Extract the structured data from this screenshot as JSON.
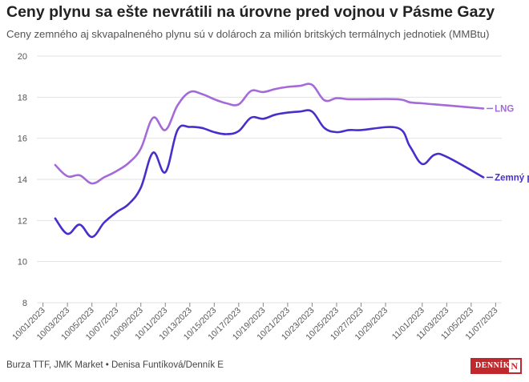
{
  "header": {
    "title": "Ceny plynu sa ešte nevrátili na úrovne pred vojnou v Pásme Gazy",
    "subtitle": "Ceny zemného aj skvapalneného plynu sú v dolároch za milión britských termálnych jednotiek (MMBtu)"
  },
  "footer": {
    "source": "Burza TTF, JMK Market • Denisa Funtíková/Denník E",
    "logo_text": "DENNÍK",
    "logo_mark": "N"
  },
  "colors": {
    "lng": "#a46ad8",
    "natural_gas": "#4a2ecb",
    "grid": "#e2e2e2",
    "axis_text": "#555555"
  },
  "chart_data": {
    "type": "line",
    "ylim": [
      8,
      20
    ],
    "yticks": [
      8,
      10,
      12,
      14,
      16,
      18,
      20
    ],
    "grid": true,
    "xlabel": "",
    "ylabel": "",
    "xticks": [
      "10/01/2023",
      "10/03/2023",
      "10/05/2023",
      "10/07/2023",
      "10/09/2023",
      "10/11/2023",
      "10/13/2023",
      "10/15/2023",
      "10/17/2023",
      "10/19/2023",
      "10/21/2023",
      "10/23/2023",
      "10/25/2023",
      "10/27/2023",
      "10/29/2023",
      "11/01/2023",
      "11/03/2023",
      "11/05/2023",
      "11/07/2023"
    ],
    "series": [
      {
        "name": "LNG",
        "color_key": "lng",
        "points": [
          [
            "10/02/2023",
            14.7
          ],
          [
            "10/03/2023",
            14.15
          ],
          [
            "10/04/2023",
            14.2
          ],
          [
            "10/05/2023",
            13.8
          ],
          [
            "10/06/2023",
            14.1
          ],
          [
            "10/07/2023",
            14.4
          ],
          [
            "10/08/2023",
            14.8
          ],
          [
            "10/09/2023",
            15.5
          ],
          [
            "10/10/2023",
            17.0
          ],
          [
            "10/11/2023",
            16.4
          ],
          [
            "10/12/2023",
            17.6
          ],
          [
            "10/13/2023",
            18.25
          ],
          [
            "10/14/2023",
            18.15
          ],
          [
            "10/15/2023",
            17.9
          ],
          [
            "10/16/2023",
            17.7
          ],
          [
            "10/17/2023",
            17.65
          ],
          [
            "10/18/2023",
            18.3
          ],
          [
            "10/19/2023",
            18.25
          ],
          [
            "10/20/2023",
            18.4
          ],
          [
            "10/21/2023",
            18.5
          ],
          [
            "10/22/2023",
            18.55
          ],
          [
            "10/23/2023",
            18.6
          ],
          [
            "10/24/2023",
            17.85
          ],
          [
            "10/25/2023",
            17.95
          ],
          [
            "10/26/2023",
            17.9
          ],
          [
            "10/27/2023",
            17.9
          ],
          [
            "10/30/2023",
            17.9
          ],
          [
            "10/31/2023",
            17.75
          ],
          [
            "11/01/2023",
            17.7
          ],
          [
            "11/02/2023",
            17.65
          ],
          [
            "11/03/2023",
            17.6
          ],
          [
            "11/06/2023",
            17.45
          ]
        ]
      },
      {
        "name": "Zemný plyn",
        "color_key": "natural_gas",
        "points": [
          [
            "10/02/2023",
            12.1
          ],
          [
            "10/03/2023",
            11.35
          ],
          [
            "10/04/2023",
            11.8
          ],
          [
            "10/05/2023",
            11.2
          ],
          [
            "10/06/2023",
            11.9
          ],
          [
            "10/07/2023",
            12.4
          ],
          [
            "10/08/2023",
            12.8
          ],
          [
            "10/09/2023",
            13.6
          ],
          [
            "10/10/2023",
            15.3
          ],
          [
            "10/11/2023",
            14.35
          ],
          [
            "10/12/2023",
            16.4
          ],
          [
            "10/13/2023",
            16.55
          ],
          [
            "10/14/2023",
            16.5
          ],
          [
            "10/15/2023",
            16.3
          ],
          [
            "10/16/2023",
            16.2
          ],
          [
            "10/17/2023",
            16.35
          ],
          [
            "10/18/2023",
            17.0
          ],
          [
            "10/19/2023",
            16.95
          ],
          [
            "10/20/2023",
            17.15
          ],
          [
            "10/21/2023",
            17.25
          ],
          [
            "10/22/2023",
            17.3
          ],
          [
            "10/23/2023",
            17.3
          ],
          [
            "10/24/2023",
            16.5
          ],
          [
            "10/25/2023",
            16.3
          ],
          [
            "10/26/2023",
            16.4
          ],
          [
            "10/27/2023",
            16.4
          ],
          [
            "10/30/2023",
            16.5
          ],
          [
            "10/31/2023",
            15.6
          ],
          [
            "11/01/2023",
            14.75
          ],
          [
            "11/02/2023",
            15.2
          ],
          [
            "11/03/2023",
            15.1
          ],
          [
            "11/06/2023",
            14.1
          ]
        ]
      }
    ]
  }
}
